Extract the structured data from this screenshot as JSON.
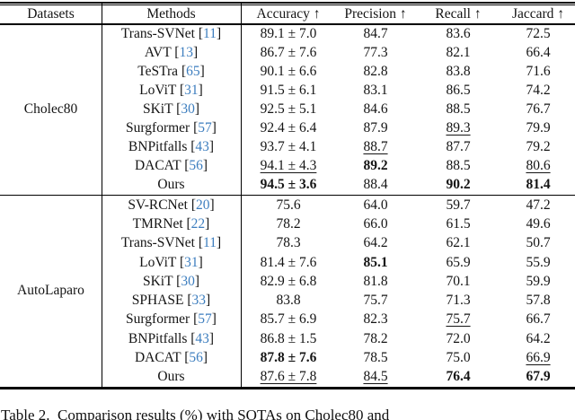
{
  "colors": {
    "citation": "#3d7ebf",
    "rule": "#000000",
    "text": "#141414"
  },
  "caption": "Table 2.  Comparison results (%) with SOTAs on Cholec80 and",
  "table": {
    "headers": {
      "datasets": "Datasets",
      "methods": "Methods",
      "metrics": [
        "Accuracy ↑",
        "Precision ↑",
        "Recall ↑",
        "Jaccard ↑"
      ]
    },
    "sections": [
      {
        "dataset": "Cholec80",
        "rows": [
          {
            "method": "Trans-SVNet",
            "cite": "11",
            "cells": [
              {
                "t": "89.1 ± 7.0",
                "s": "n"
              },
              {
                "t": "84.7",
                "s": "n"
              },
              {
                "t": "83.6",
                "s": "n"
              },
              {
                "t": "72.5",
                "s": "n"
              }
            ]
          },
          {
            "method": "AVT",
            "cite": "13",
            "cells": [
              {
                "t": "86.7 ± 7.6",
                "s": "n"
              },
              {
                "t": "77.3",
                "s": "n"
              },
              {
                "t": "82.1",
                "s": "n"
              },
              {
                "t": "66.4",
                "s": "n"
              }
            ]
          },
          {
            "method": "TeSTra",
            "cite": "65",
            "cells": [
              {
                "t": "90.1 ± 6.6",
                "s": "n"
              },
              {
                "t": "82.8",
                "s": "n"
              },
              {
                "t": "83.8",
                "s": "n"
              },
              {
                "t": "71.6",
                "s": "n"
              }
            ]
          },
          {
            "method": "LoViT",
            "cite": "31",
            "cells": [
              {
                "t": "91.5 ± 6.1",
                "s": "n"
              },
              {
                "t": "83.1",
                "s": "n"
              },
              {
                "t": "86.5",
                "s": "n"
              },
              {
                "t": "74.2",
                "s": "n"
              }
            ]
          },
          {
            "method": "SKiT",
            "cite": "30",
            "cells": [
              {
                "t": "92.5 ± 5.1",
                "s": "n"
              },
              {
                "t": "84.6",
                "s": "n"
              },
              {
                "t": "88.5",
                "s": "n"
              },
              {
                "t": "76.7",
                "s": "n"
              }
            ]
          },
          {
            "method": "Surgformer",
            "cite": "57",
            "cells": [
              {
                "t": "92.4 ± 6.4",
                "s": "n"
              },
              {
                "t": "87.9",
                "s": "n"
              },
              {
                "t": "89.3",
                "s": "u"
              },
              {
                "t": "79.9",
                "s": "n"
              }
            ]
          },
          {
            "method": "BNPitfalls",
            "cite": "43",
            "cells": [
              {
                "t": "93.7 ± 4.1",
                "s": "n"
              },
              {
                "t": "88.7",
                "s": "u"
              },
              {
                "t": "87.7",
                "s": "n"
              },
              {
                "t": "79.2",
                "s": "n"
              }
            ]
          },
          {
            "method": "DACAT",
            "cite": "56",
            "cells": [
              {
                "t": "94.1 ± 4.3",
                "s": "u"
              },
              {
                "t": "89.2",
                "s": "b"
              },
              {
                "t": "88.5",
                "s": "n"
              },
              {
                "t": "80.6",
                "s": "u"
              }
            ]
          },
          {
            "method": "Ours",
            "cite": null,
            "cells": [
              {
                "t": "94.5 ± 3.6",
                "s": "b"
              },
              {
                "t": "88.4",
                "s": "n"
              },
              {
                "t": "90.2",
                "s": "b"
              },
              {
                "t": "81.4",
                "s": "b"
              }
            ]
          }
        ]
      },
      {
        "dataset": "AutoLaparo",
        "rows": [
          {
            "method": "SV-RCNet",
            "cite": "20",
            "cells": [
              {
                "t": "75.6",
                "s": "n"
              },
              {
                "t": "64.0",
                "s": "n"
              },
              {
                "t": "59.7",
                "s": "n"
              },
              {
                "t": "47.2",
                "s": "n"
              }
            ]
          },
          {
            "method": "TMRNet",
            "cite": "22",
            "cells": [
              {
                "t": "78.2",
                "s": "n"
              },
              {
                "t": "66.0",
                "s": "n"
              },
              {
                "t": "61.5",
                "s": "n"
              },
              {
                "t": "49.6",
                "s": "n"
              }
            ]
          },
          {
            "method": "Trans-SVNet",
            "cite": "11",
            "cells": [
              {
                "t": "78.3",
                "s": "n"
              },
              {
                "t": "64.2",
                "s": "n"
              },
              {
                "t": "62.1",
                "s": "n"
              },
              {
                "t": "50.7",
                "s": "n"
              }
            ]
          },
          {
            "method": "LoViT",
            "cite": "31",
            "cells": [
              {
                "t": "81.4 ± 7.6",
                "s": "n"
              },
              {
                "t": "85.1",
                "s": "b"
              },
              {
                "t": "65.9",
                "s": "n"
              },
              {
                "t": "55.9",
                "s": "n"
              }
            ]
          },
          {
            "method": "SKiT",
            "cite": "30",
            "cells": [
              {
                "t": "82.9 ± 6.8",
                "s": "n"
              },
              {
                "t": "81.8",
                "s": "n"
              },
              {
                "t": "70.1",
                "s": "n"
              },
              {
                "t": "59.9",
                "s": "n"
              }
            ]
          },
          {
            "method": "SPHASE",
            "cite": "33",
            "cells": [
              {
                "t": "83.8",
                "s": "n"
              },
              {
                "t": "75.7",
                "s": "n"
              },
              {
                "t": "71.3",
                "s": "n"
              },
              {
                "t": "57.8",
                "s": "n"
              }
            ]
          },
          {
            "method": "Surgformer",
            "cite": "57",
            "cells": [
              {
                "t": "85.7 ± 6.9",
                "s": "n"
              },
              {
                "t": "82.3",
                "s": "n"
              },
              {
                "t": "75.7",
                "s": "u"
              },
              {
                "t": "66.7",
                "s": "n"
              }
            ]
          },
          {
            "method": "BNPitfalls",
            "cite": "43",
            "cells": [
              {
                "t": "86.8 ± 1.5",
                "s": "n"
              },
              {
                "t": "78.2",
                "s": "n"
              },
              {
                "t": "72.0",
                "s": "n"
              },
              {
                "t": "64.2",
                "s": "n"
              }
            ]
          },
          {
            "method": "DACAT",
            "cite": "56",
            "cells": [
              {
                "t": "87.8 ± 7.6",
                "s": "b"
              },
              {
                "t": "78.5",
                "s": "n"
              },
              {
                "t": "75.0",
                "s": "n"
              },
              {
                "t": "66.9",
                "s": "u"
              }
            ]
          },
          {
            "method": "Ours",
            "cite": null,
            "cells": [
              {
                "t": "87.6 ± 7.8",
                "s": "u"
              },
              {
                "t": "84.5",
                "s": "u"
              },
              {
                "t": "76.4",
                "s": "b"
              },
              {
                "t": "67.9",
                "s": "b"
              }
            ]
          }
        ]
      }
    ]
  }
}
